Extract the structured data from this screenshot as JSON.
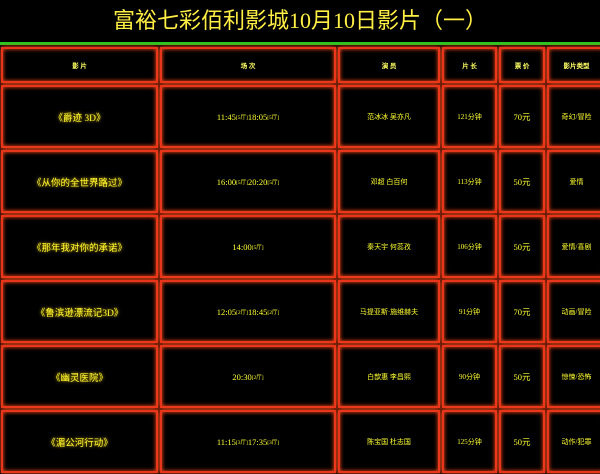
{
  "title": "富裕七彩佰利影城10月10日影片（一）",
  "table": {
    "headers": [
      "影 片",
      "场 次",
      "演 员",
      "片 长",
      "票 价",
      "影片类型"
    ],
    "rows": [
      {
        "film": "《爵迹 3D》",
        "showtimes": [
          {
            "time": "11:45",
            "hall": "[5厅]"
          },
          {
            "time": "18:05",
            "hall": "[5厅]"
          }
        ],
        "cast": "范冰冰 吴亦凡",
        "duration": "121分钟",
        "price": "70元",
        "genre": "奇幻/冒险"
      },
      {
        "film": "《从你的全世界路过》",
        "showtimes": [
          {
            "time": "16:00",
            "hall": "[5厅]"
          },
          {
            "time": "20:20",
            "hall": "[5厅]"
          }
        ],
        "cast": "邓超 白百何",
        "duration": "113分钟",
        "price": "50元",
        "genre": "爱情"
      },
      {
        "film": "《那年我对你的承诺》",
        "showtimes": [
          {
            "time": "14:00",
            "hall": "[5厅]"
          }
        ],
        "cast": "秦天宇 何蕊孜",
        "duration": "106分钟",
        "price": "50元",
        "genre": "爱情/喜剧"
      },
      {
        "film": "《鲁滨逊漂流记3D》",
        "showtimes": [
          {
            "time": "12:05",
            "hall": "[2厅]"
          },
          {
            "time": "18:45",
            "hall": "[2厅]"
          }
        ],
        "cast": "马提亚斯·施维赫夫",
        "duration": "91分钟",
        "price": "70元",
        "genre": "动画/冒险"
      },
      {
        "film": "《幽灵医院》",
        "showtimes": [
          {
            "time": "20:30",
            "hall": "[2厅]"
          }
        ],
        "cast": "白歆惠 李昌熙",
        "duration": "90分钟",
        "price": "50元",
        "genre": "惊悚/恐怖"
      },
      {
        "film": "《湄公河行动》",
        "showtimes": [
          {
            "time": "11:15",
            "hall": "[3厅]"
          },
          {
            "time": "17:35",
            "hall": "[3厅]"
          }
        ],
        "cast": "陈宝国 杜志国",
        "duration": "125分钟",
        "price": "50元",
        "genre": "动作/犯罪"
      }
    ]
  }
}
